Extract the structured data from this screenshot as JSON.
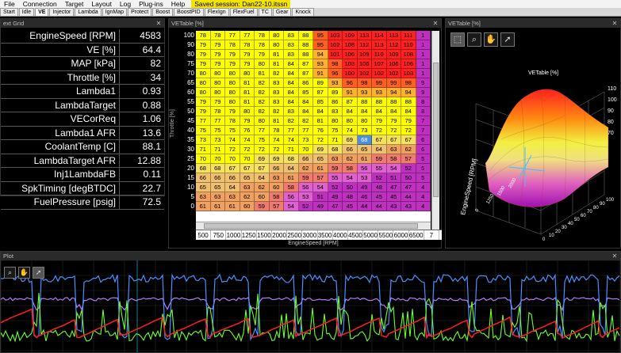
{
  "menu": {
    "items": [
      "File",
      "Connection",
      "Target",
      "Layout",
      "Log",
      "Plug-ins",
      "Help"
    ],
    "saved_session": "Saved session: Dan22-10.itssn"
  },
  "tabs": {
    "items": [
      "Start",
      "Idle",
      "VE",
      "Injector",
      "Lambda",
      "IgnMap",
      "Protect",
      "Boost",
      "BoostPID",
      "FlexIgn",
      "FlexFuel",
      "TC",
      "Gear",
      "Knock"
    ],
    "active": "VE"
  },
  "text_grid": {
    "title": "ext Grid",
    "rows": [
      {
        "label": "EngineSpeed [RPM]",
        "value": "4583"
      },
      {
        "label": "VE [%]",
        "value": "64.4"
      },
      {
        "label": "MAP [kPa]",
        "value": "82"
      },
      {
        "label": "Throttle [%]",
        "value": "34"
      },
      {
        "label": "Lambda1",
        "value": "0.93"
      },
      {
        "label": "LambdaTarget",
        "value": "0.88"
      },
      {
        "label": "VECorReq",
        "value": "1.06"
      },
      {
        "label": "Lambda1 AFR",
        "value": "13.6"
      },
      {
        "label": "CoolantTemp [C]",
        "value": "88.1"
      },
      {
        "label": "LambdaTarget AFR",
        "value": "12.88"
      },
      {
        "label": "Inj1LambdaFB",
        "value": "0.11"
      },
      {
        "label": "SpkTiming [degBTDC]",
        "value": "22.7"
      },
      {
        "label": "FuelPressure [psig]",
        "value": "72.5"
      }
    ]
  },
  "ve_table": {
    "title": "VETable [%]",
    "y_axis_label": "Throttle [%]",
    "x_axis_label": "EngineSpeed [RPM]",
    "row_labels": [
      "100",
      "90",
      "80",
      "75",
      "70",
      "65",
      "60",
      "55",
      "50",
      "45",
      "40",
      "35",
      "30",
      "25",
      "20",
      "15",
      "10",
      "5",
      "0"
    ],
    "col_labels": [
      "500",
      "750",
      "1000",
      "1250",
      "1500",
      "2000",
      "2500",
      "3000",
      "3500",
      "4000",
      "4500",
      "5000",
      "5500",
      "6000",
      "6500",
      "7"
    ],
    "selected_cell": [
      11,
      11
    ],
    "rows": [
      [
        "78",
        "78",
        "77",
        "77",
        "78",
        "80",
        "83",
        "88",
        "95",
        "103",
        "109",
        "113",
        "114",
        "113",
        "111",
        "1"
      ],
      [
        "79",
        "79",
        "78",
        "78",
        "78",
        "80",
        "83",
        "88",
        "95",
        "102",
        "108",
        "112",
        "113",
        "112",
        "110",
        "1"
      ],
      [
        "79",
        "79",
        "79",
        "79",
        "79",
        "81",
        "83",
        "88",
        "94",
        "101",
        "106",
        "109",
        "110",
        "109",
        "108",
        "1"
      ],
      [
        "79",
        "79",
        "79",
        "79",
        "80",
        "81",
        "84",
        "87",
        "93",
        "98",
        "103",
        "106",
        "107",
        "106",
        "106",
        "1"
      ],
      [
        "80",
        "80",
        "80",
        "80",
        "81",
        "82",
        "84",
        "87",
        "91",
        "96",
        "100",
        "102",
        "102",
        "102",
        "103",
        "1"
      ],
      [
        "80",
        "80",
        "80",
        "81",
        "82",
        "83",
        "84",
        "86",
        "89",
        "93",
        "96",
        "98",
        "99",
        "99",
        "98",
        "9"
      ],
      [
        "80",
        "80",
        "80",
        "81",
        "82",
        "83",
        "84",
        "85",
        "87",
        "89",
        "91",
        "93",
        "93",
        "94",
        "94",
        "9"
      ],
      [
        "79",
        "79",
        "80",
        "81",
        "82",
        "83",
        "84",
        "84",
        "85",
        "86",
        "87",
        "88",
        "88",
        "88",
        "88",
        "8"
      ],
      [
        "79",
        "78",
        "79",
        "80",
        "82",
        "82",
        "83",
        "84",
        "84",
        "83",
        "84",
        "84",
        "84",
        "84",
        "84",
        "8"
      ],
      [
        "77",
        "77",
        "78",
        "79",
        "80",
        "81",
        "82",
        "82",
        "81",
        "80",
        "80",
        "80",
        "79",
        "79",
        "79",
        "7"
      ],
      [
        "75",
        "75",
        "75",
        "76",
        "77",
        "78",
        "77",
        "77",
        "76",
        "75",
        "74",
        "73",
        "72",
        "72",
        "72",
        "7"
      ],
      [
        "73",
        "73",
        "74",
        "74",
        "75",
        "74",
        "74",
        "73",
        "72",
        "71",
        "69",
        "68",
        "67",
        "67",
        "67",
        "6"
      ],
      [
        "71",
        "71",
        "72",
        "72",
        "72",
        "72",
        "71",
        "70",
        "69",
        "68",
        "66",
        "65",
        "64",
        "63",
        "62",
        "6"
      ],
      [
        "70",
        "70",
        "70",
        "70",
        "69",
        "69",
        "68",
        "66",
        "65",
        "63",
        "62",
        "61",
        "59",
        "58",
        "57",
        "5"
      ],
      [
        "68",
        "68",
        "67",
        "67",
        "67",
        "66",
        "64",
        "62",
        "61",
        "59",
        "58",
        "56",
        "55",
        "54",
        "52",
        "5"
      ],
      [
        "66",
        "66",
        "66",
        "65",
        "64",
        "63",
        "61",
        "59",
        "57",
        "55",
        "54",
        "53",
        "52",
        "51",
        "50",
        "5"
      ],
      [
        "65",
        "65",
        "64",
        "63",
        "62",
        "60",
        "58",
        "56",
        "54",
        "52",
        "50",
        "49",
        "48",
        "47",
        "47",
        "4"
      ],
      [
        "63",
        "63",
        "63",
        "62",
        "60",
        "58",
        "56",
        "53",
        "51",
        "49",
        "48",
        "46",
        "45",
        "45",
        "44",
        "4"
      ],
      [
        "61",
        "61",
        "61",
        "60",
        "59",
        "57",
        "54",
        "52",
        "49",
        "47",
        "45",
        "44",
        "44",
        "43",
        "43",
        "4"
      ]
    ]
  },
  "ve_3d": {
    "title": "VETable [%]",
    "plot_title": "VETable [%]",
    "z_ticks": [
      "110",
      "100",
      "90",
      "80",
      "70"
    ],
    "y_axis_label": "EngineSpeed [RPM]",
    "y_ticks": [
      "0",
      "1250",
      "1500",
      "2000"
    ],
    "x_ticks": [
      "0",
      "10",
      "20",
      "30",
      "40",
      "50",
      "60",
      "70",
      "80",
      "90",
      "100"
    ],
    "tools": [
      "select-icon",
      "zoom-icon",
      "pan-icon",
      "pointer-icon"
    ]
  },
  "plot": {
    "title": "Plot",
    "tools": [
      "zoom-icon",
      "pan-icon",
      "pointer-icon"
    ],
    "colors": {
      "blue": "#4a90ff",
      "violet": "#b07cff",
      "red": "#ff1e1e",
      "green": "#6cff2a"
    }
  }
}
